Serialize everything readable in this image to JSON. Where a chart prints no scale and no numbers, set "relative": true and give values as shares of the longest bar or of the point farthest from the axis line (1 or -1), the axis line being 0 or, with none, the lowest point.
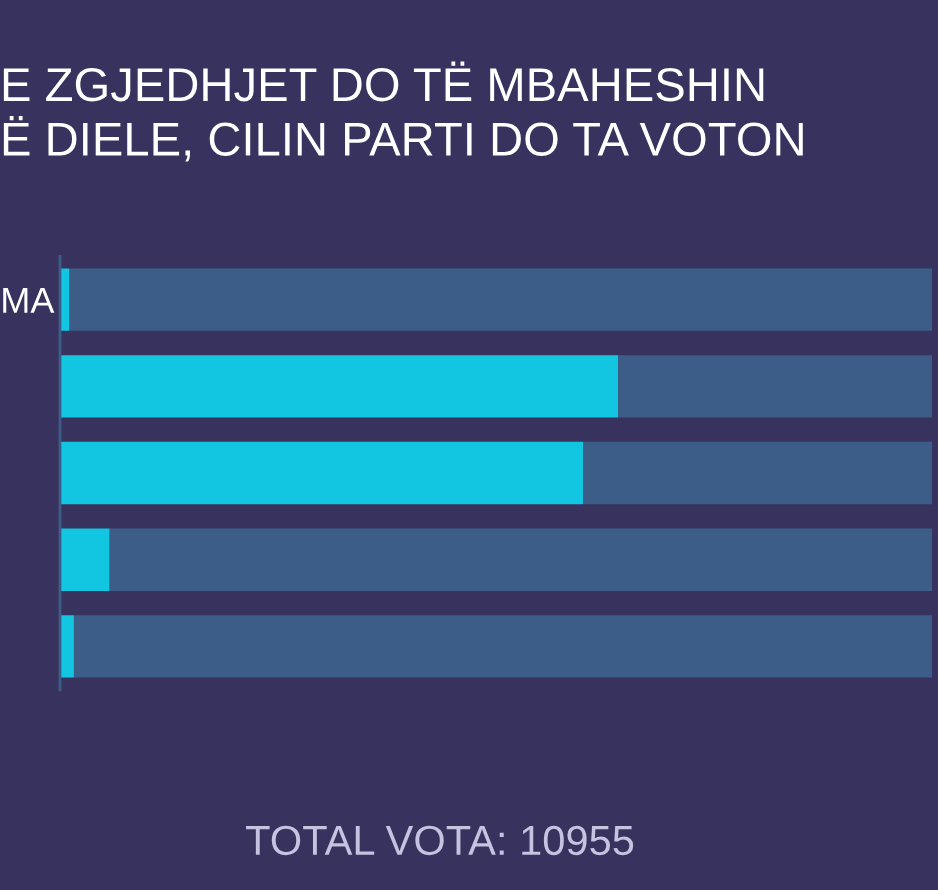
{
  "chart_data": {
    "type": "bar",
    "orientation": "horizontal",
    "relative": true,
    "stacked": true,
    "title": "E ZGJEDHJET DO TË MBAHESHIN\nË DIELE, CILIN PARTI DO TA VOTON",
    "categories": [
      "MA",
      null,
      null,
      null,
      null
    ],
    "series": [
      {
        "color": "#12c6e2",
        "values": [
          0.011,
          0.64,
          0.6,
          0.057,
          0.016
        ]
      },
      {
        "color": "#3b5d87",
        "values": [
          0.989,
          0.36,
          0.4,
          0.943,
          0.984
        ]
      }
    ],
    "annotations": [
      "TOTAL VOTA: 10955"
    ]
  }
}
